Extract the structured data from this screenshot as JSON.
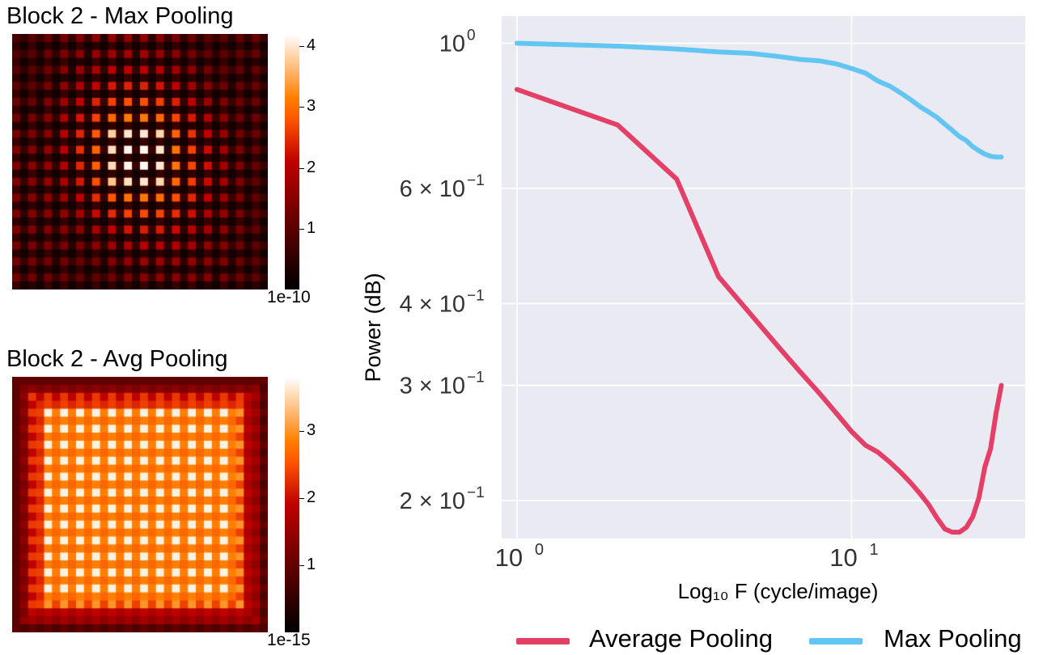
{
  "heatmaps": [
    {
      "title": "Block 2 - Max Pooling",
      "colorbar_ticks": [
        "1",
        "2",
        "3",
        "4"
      ],
      "colorbar_tick_values": [
        1,
        2,
        3,
        4
      ],
      "colorbar_max": 4.2,
      "colorbar_exponent": "1e-10",
      "pattern": "sparse grid of bright dots, peak at center",
      "colormap": "gist_heat"
    },
    {
      "title": "Block 2 - Avg Pooling",
      "colorbar_ticks": [
        "1",
        "2",
        "3"
      ],
      "colorbar_tick_values": [
        1,
        2,
        3
      ],
      "colorbar_max": 3.8,
      "colorbar_exponent": "1e-15",
      "pattern": "dense bright checkered square with dark border",
      "colormap": "gist_heat"
    }
  ],
  "chart_data": {
    "type": "line",
    "xlabel": "Log₁₀ F (cycle/image)",
    "ylabel": "Power (dB)",
    "xscale": "log",
    "yscale": "log",
    "xlim": [
      0.9,
      33
    ],
    "ylim": [
      0.175,
      1.1
    ],
    "x_ticks": [
      {
        "value": 1,
        "label": "10",
        "exp": "0"
      },
      {
        "value": 10,
        "label": "10",
        "exp": "1"
      }
    ],
    "y_ticks": [
      {
        "value": 1.0,
        "label": "10",
        "exp": "0",
        "mant": ""
      },
      {
        "value": 0.6,
        "label": "6 × 10",
        "exp": "−1",
        "mant": ""
      },
      {
        "value": 0.4,
        "label": "4 × 10",
        "exp": "−1",
        "mant": ""
      },
      {
        "value": 0.3,
        "label": "3 × 10",
        "exp": "−1",
        "mant": ""
      },
      {
        "value": 0.2,
        "label": "2 × 10",
        "exp": "−1",
        "mant": ""
      }
    ],
    "grid": true,
    "legend_position": "bottom",
    "series": [
      {
        "name": "Average Pooling",
        "color": "#e33f67",
        "x": [
          1,
          2,
          3,
          4,
          5,
          6,
          7,
          8,
          9,
          10,
          11,
          12,
          13,
          14,
          15,
          16,
          17,
          18,
          19,
          20,
          21,
          22,
          23,
          24,
          25,
          26,
          27,
          28
        ],
        "y": [
          0.85,
          0.75,
          0.62,
          0.44,
          0.385,
          0.345,
          0.315,
          0.292,
          0.272,
          0.255,
          0.243,
          0.237,
          0.229,
          0.221,
          0.213,
          0.205,
          0.197,
          0.188,
          0.181,
          0.179,
          0.179,
          0.182,
          0.189,
          0.202,
          0.225,
          0.24,
          0.272,
          0.3
        ]
      },
      {
        "name": "Max Pooling",
        "color": "#63c6f2",
        "x": [
          1,
          2,
          3,
          4,
          5,
          6,
          7,
          8,
          9,
          10,
          11,
          12,
          13,
          14,
          15,
          16,
          17,
          18,
          19,
          20,
          21,
          22,
          23,
          24,
          25,
          26,
          27,
          28
        ],
        "y": [
          1.0,
          0.99,
          0.98,
          0.97,
          0.965,
          0.955,
          0.945,
          0.94,
          0.93,
          0.915,
          0.9,
          0.875,
          0.86,
          0.84,
          0.82,
          0.8,
          0.785,
          0.77,
          0.752,
          0.736,
          0.72,
          0.71,
          0.695,
          0.685,
          0.677,
          0.672,
          0.67,
          0.67
        ]
      }
    ]
  }
}
